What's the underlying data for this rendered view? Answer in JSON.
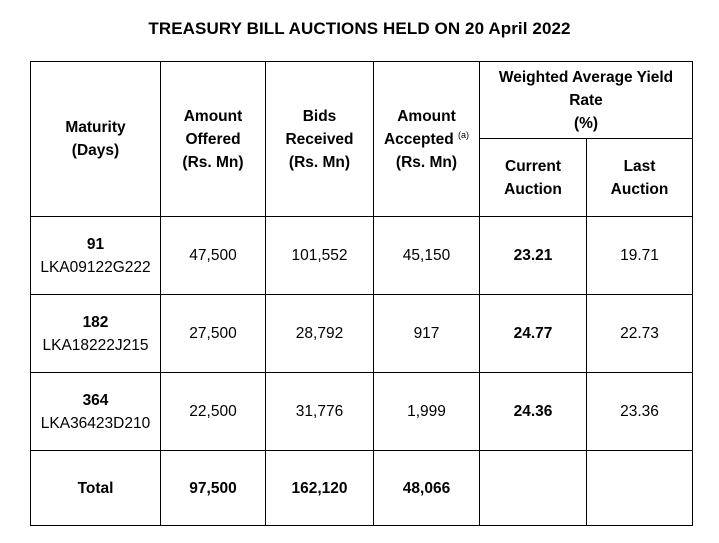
{
  "title": "TREASURY BILL AUCTIONS HELD ON 20 April 2022",
  "headers": {
    "maturity": [
      "Maturity",
      "(Days)"
    ],
    "amount_offered": [
      "Amount",
      "Offered",
      "(Rs. Mn)"
    ],
    "bids_received": [
      "Bids",
      "Received",
      "(Rs. Mn)"
    ],
    "amount_accepted": [
      "Amount",
      "Accepted",
      "(a)",
      "(Rs. Mn)"
    ],
    "yield_group": [
      "Weighted Average Yield",
      "Rate",
      "(%)"
    ],
    "current_auction": [
      "Current",
      "Auction"
    ],
    "last_auction": [
      "Last",
      "Auction"
    ]
  },
  "rows": [
    {
      "days": "91",
      "code": "LKA09122G222",
      "offered": "47,500",
      "bids": "101,552",
      "accepted": "45,150",
      "current": "23.21",
      "last": "19.71"
    },
    {
      "days": "182",
      "code": "LKA18222J215",
      "offered": "27,500",
      "bids": "28,792",
      "accepted": "917",
      "current": "24.77",
      "last": "22.73"
    },
    {
      "days": "364",
      "code": "LKA36423D210",
      "offered": "22,500",
      "bids": "31,776",
      "accepted": "1,999",
      "current": "24.36",
      "last": "23.36"
    }
  ],
  "total": {
    "label": "Total",
    "offered": "97,500",
    "bids": "162,120",
    "accepted": "48,066"
  }
}
